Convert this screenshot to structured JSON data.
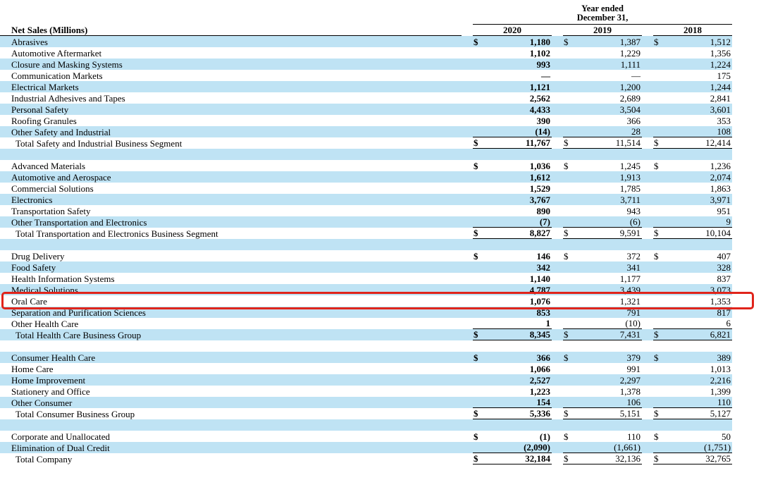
{
  "colors": {
    "row_shade": "#bfe3f4",
    "highlight": "#e0241b",
    "rule": "#000000",
    "background": "#ffffff"
  },
  "currency_symbol": "$",
  "header": {
    "period_line1": "Year ended",
    "period_line2": "December 31,",
    "row_header": "Net Sales (Millions)",
    "years": [
      "2020",
      "2019",
      "2018"
    ]
  },
  "annotation": {
    "shape": "rounded-rectangle-outline",
    "highlighted_row": "Oral Care"
  },
  "rows": [
    {
      "label": "Abrasives",
      "type": "data",
      "shaded": true,
      "dollar": true,
      "values": [
        "1,180",
        "1,387",
        "1,512"
      ]
    },
    {
      "label": "Automotive Aftermarket",
      "type": "data",
      "shaded": false,
      "dollar": false,
      "values": [
        "1,102",
        "1,229",
        "1,356"
      ]
    },
    {
      "label": "Closure and Masking Systems",
      "type": "data",
      "shaded": true,
      "dollar": false,
      "values": [
        "993",
        "1,111",
        "1,224"
      ]
    },
    {
      "label": "Communication Markets",
      "type": "data",
      "shaded": false,
      "dollar": false,
      "values": [
        "—",
        "—",
        "175"
      ]
    },
    {
      "label": "Electrical Markets",
      "type": "data",
      "shaded": true,
      "dollar": false,
      "values": [
        "1,121",
        "1,200",
        "1,244"
      ]
    },
    {
      "label": "Industrial Adhesives and Tapes",
      "type": "data",
      "shaded": false,
      "dollar": false,
      "values": [
        "2,562",
        "2,689",
        "2,841"
      ]
    },
    {
      "label": "Personal Safety",
      "type": "data",
      "shaded": true,
      "dollar": false,
      "values": [
        "4,433",
        "3,504",
        "3,601"
      ]
    },
    {
      "label": "Roofing Granules",
      "type": "data",
      "shaded": false,
      "dollar": false,
      "values": [
        "390",
        "366",
        "353"
      ]
    },
    {
      "label": "Other Safety and Industrial",
      "type": "rule",
      "shaded": true,
      "dollar": false,
      "values": [
        "(14)",
        "28",
        "108"
      ]
    },
    {
      "label": "Total Safety and Industrial Business Segment",
      "type": "total",
      "shaded": false,
      "dollar": true,
      "values": [
        "11,767",
        "11,514",
        "12,414"
      ]
    },
    {
      "type": "blank",
      "shaded": true
    },
    {
      "label": "Advanced Materials",
      "type": "data",
      "shaded": false,
      "dollar": true,
      "values": [
        "1,036",
        "1,245",
        "1,236"
      ]
    },
    {
      "label": "Automotive and Aerospace",
      "type": "data",
      "shaded": true,
      "dollar": false,
      "values": [
        "1,612",
        "1,913",
        "2,074"
      ]
    },
    {
      "label": "Commercial Solutions",
      "type": "data",
      "shaded": false,
      "dollar": false,
      "values": [
        "1,529",
        "1,785",
        "1,863"
      ]
    },
    {
      "label": "Electronics",
      "type": "data",
      "shaded": true,
      "dollar": false,
      "values": [
        "3,767",
        "3,711",
        "3,971"
      ]
    },
    {
      "label": "Transportation Safety",
      "type": "data",
      "shaded": false,
      "dollar": false,
      "values": [
        "890",
        "943",
        "951"
      ]
    },
    {
      "label": "Other Transportation and Electronics",
      "type": "rule",
      "shaded": true,
      "dollar": false,
      "values": [
        "(7)",
        "(6)",
        "9"
      ]
    },
    {
      "label": "Total Transportation and Electronics Business Segment",
      "type": "total",
      "shaded": false,
      "dollar": true,
      "values": [
        "8,827",
        "9,591",
        "10,104"
      ]
    },
    {
      "type": "blank",
      "shaded": true
    },
    {
      "label": "Drug Delivery",
      "type": "data",
      "shaded": false,
      "dollar": true,
      "values": [
        "146",
        "372",
        "407"
      ]
    },
    {
      "label": "Food Safety",
      "type": "data",
      "shaded": true,
      "dollar": false,
      "values": [
        "342",
        "341",
        "328"
      ]
    },
    {
      "label": "Health Information Systems",
      "type": "data",
      "shaded": false,
      "dollar": false,
      "values": [
        "1,140",
        "1,177",
        "837"
      ]
    },
    {
      "label": "Medical Solutions",
      "type": "data",
      "shaded": true,
      "dollar": false,
      "values": [
        "4,787",
        "3,439",
        "3,073"
      ]
    },
    {
      "label": "Oral Care",
      "type": "data",
      "shaded": false,
      "dollar": false,
      "values": [
        "1,076",
        "1,321",
        "1,353"
      ],
      "highlighted": true
    },
    {
      "label": "Separation and Purification Sciences",
      "type": "data",
      "shaded": true,
      "dollar": false,
      "values": [
        "853",
        "791",
        "817"
      ]
    },
    {
      "label": "Other Health Care",
      "type": "rule",
      "shaded": false,
      "dollar": false,
      "values": [
        "1",
        "(10)",
        "6"
      ]
    },
    {
      "label": "Total Health Care Business Group",
      "type": "total",
      "shaded": true,
      "dollar": true,
      "values": [
        "8,345",
        "7,431",
        "6,821"
      ]
    },
    {
      "type": "blank",
      "shaded": false
    },
    {
      "label": "Consumer Health Care",
      "type": "data",
      "shaded": true,
      "dollar": true,
      "values": [
        "366",
        "379",
        "389"
      ]
    },
    {
      "label": "Home Care",
      "type": "data",
      "shaded": false,
      "dollar": false,
      "values": [
        "1,066",
        "991",
        "1,013"
      ]
    },
    {
      "label": "Home Improvement",
      "type": "data",
      "shaded": true,
      "dollar": false,
      "values": [
        "2,527",
        "2,297",
        "2,216"
      ]
    },
    {
      "label": "Stationery and Office",
      "type": "data",
      "shaded": false,
      "dollar": false,
      "values": [
        "1,223",
        "1,378",
        "1,399"
      ]
    },
    {
      "label": "Other Consumer",
      "type": "rule",
      "shaded": true,
      "dollar": false,
      "values": [
        "154",
        "106",
        "110"
      ]
    },
    {
      "label": "Total Consumer Business Group",
      "type": "total",
      "shaded": false,
      "dollar": true,
      "values": [
        "5,336",
        "5,151",
        "5,127"
      ]
    },
    {
      "type": "blank",
      "shaded": true
    },
    {
      "label": "Corporate and Unallocated",
      "type": "data",
      "shaded": false,
      "dollar": true,
      "values": [
        "(1)",
        "110",
        "50"
      ]
    },
    {
      "label": "Elimination of Dual Credit",
      "type": "rule",
      "shaded": true,
      "dollar": false,
      "values": [
        "(2,090)",
        "(1,661)",
        "(1,751)"
      ]
    },
    {
      "label": "Total Company",
      "type": "total",
      "shaded": false,
      "dollar": true,
      "values": [
        "32,184",
        "32,136",
        "32,765"
      ]
    }
  ]
}
